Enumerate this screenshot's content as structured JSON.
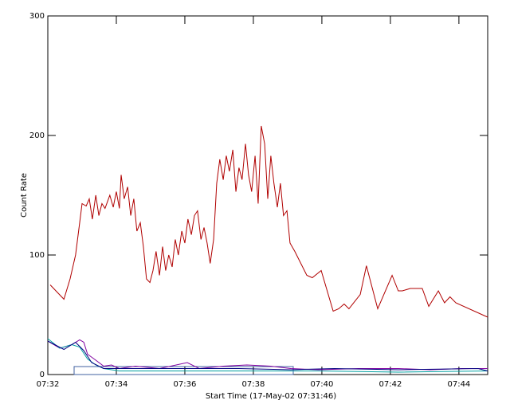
{
  "chart_data": {
    "type": "line",
    "ylabel": "Count Rate",
    "xlabel": "Start Time (17-May-02 07:31:46)",
    "xlim": [
      32,
      44.84
    ],
    "ylim": [
      0,
      300
    ],
    "xticks": [
      {
        "value": 32,
        "label": "07:32"
      },
      {
        "value": 34,
        "label": "07:34"
      },
      {
        "value": 36,
        "label": "07:36"
      },
      {
        "value": 38,
        "label": "07:38"
      },
      {
        "value": 40,
        "label": "07:40"
      },
      {
        "value": 42,
        "label": "07:42"
      },
      {
        "value": 44,
        "label": "07:44"
      }
    ],
    "yticks": [
      0,
      100,
      200,
      300
    ],
    "series": [
      {
        "color": "#b00000",
        "x": [
          32.07,
          32.47,
          32.65,
          32.81,
          32.93,
          33.0,
          33.12,
          33.21,
          33.3,
          33.4,
          33.49,
          33.58,
          33.67,
          33.81,
          33.91,
          34.0,
          34.09,
          34.14,
          34.23,
          34.33,
          34.42,
          34.51,
          34.6,
          34.7,
          34.79,
          34.88,
          34.98,
          35.07,
          35.16,
          35.26,
          35.35,
          35.44,
          35.53,
          35.63,
          35.72,
          35.81,
          35.91,
          36.0,
          36.09,
          36.19,
          36.28,
          36.37,
          36.47,
          36.56,
          36.65,
          36.74,
          36.84,
          36.93,
          37.02,
          37.12,
          37.21,
          37.3,
          37.4,
          37.49,
          37.58,
          37.67,
          37.77,
          37.86,
          37.95,
          38.05,
          38.14,
          38.23,
          38.33,
          38.42,
          38.51,
          38.6,
          38.7,
          38.79,
          38.88,
          38.98,
          39.07,
          39.21,
          39.56,
          39.72,
          39.98,
          40.33,
          40.49,
          40.65,
          40.79,
          41.12,
          41.3,
          41.63,
          42.05,
          42.23,
          42.35,
          42.58,
          42.93,
          43.12,
          43.4,
          43.58,
          43.74,
          43.91,
          44.84
        ],
        "values": [
          75,
          63,
          80,
          100,
          127,
          143,
          141,
          147,
          130,
          150,
          133,
          143,
          139,
          150,
          140,
          153,
          139,
          167,
          147,
          157,
          133,
          147,
          120,
          127,
          107,
          80,
          77,
          87,
          103,
          83,
          107,
          87,
          100,
          90,
          113,
          100,
          120,
          110,
          130,
          117,
          133,
          137,
          113,
          123,
          110,
          93,
          113,
          160,
          180,
          163,
          183,
          170,
          188,
          153,
          173,
          163,
          193,
          167,
          153,
          183,
          143,
          208,
          193,
          147,
          183,
          160,
          140,
          160,
          133,
          137,
          110,
          103,
          83,
          81,
          87,
          53,
          55,
          59,
          55,
          67,
          91,
          55,
          83,
          70,
          70,
          72,
          72,
          57,
          70,
          60,
          65,
          60,
          48
        ]
      },
      {
        "color": "#8000a0",
        "x": [
          32.0,
          32.35,
          32.7,
          32.93,
          33.05,
          33.16,
          33.4,
          33.63,
          33.86,
          34.09,
          34.56,
          35.26,
          36.07,
          36.42,
          37.12,
          37.81,
          38.51,
          39.09,
          39.91,
          41.07,
          42.23,
          43.16,
          44.09,
          44.84
        ],
        "values": [
          28,
          22,
          25,
          29,
          27,
          17,
          12,
          7,
          8,
          5,
          7,
          5,
          10,
          5,
          7,
          8,
          7,
          5,
          4,
          5,
          5,
          4,
          5,
          5
        ]
      },
      {
        "color": "#00a0a0",
        "x": [
          32.0,
          32.35,
          32.7,
          32.93,
          33.16,
          33.4,
          33.63,
          34.09,
          35.26,
          36.42,
          37.58,
          39.09,
          39.91,
          42.23,
          44.84
        ],
        "values": [
          30,
          22,
          25,
          23,
          13,
          8,
          5,
          3,
          3,
          3,
          3,
          3,
          3,
          2,
          3
        ]
      },
      {
        "color": "#000080",
        "x": [
          32.0,
          32.47,
          32.81,
          33.05,
          33.28,
          33.63,
          34.33,
          35.95,
          37.58,
          39.09,
          40.37,
          42.23,
          44.56,
          44.84
        ],
        "values": [
          28,
          21,
          27,
          20,
          10,
          5,
          5,
          5,
          5,
          4,
          5,
          4,
          5,
          3
        ]
      }
    ]
  }
}
